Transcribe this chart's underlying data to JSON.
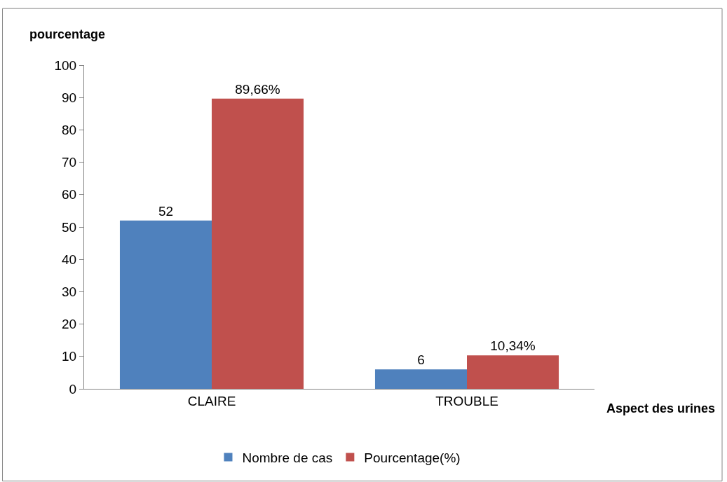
{
  "chart_data": {
    "type": "bar",
    "xlabel": "Aspect des urines",
    "ylabel": "pourcentage",
    "categories": [
      "CLAIRE",
      "TROUBLE"
    ],
    "series": [
      {
        "name": "Nombre de cas",
        "color": "#4f81bd",
        "values": [
          52,
          6
        ],
        "value_labels": [
          "52",
          "6"
        ]
      },
      {
        "name": "Pourcentage(%)",
        "color": "#c0504d",
        "values": [
          89.66,
          10.34
        ],
        "value_labels": [
          "89,66%",
          "10,34%"
        ]
      }
    ],
    "ylim": [
      0,
      100
    ],
    "yticks": [
      0,
      10,
      20,
      30,
      40,
      50,
      60,
      70,
      80,
      90,
      100
    ],
    "grid": false,
    "legend": "bottom"
  }
}
